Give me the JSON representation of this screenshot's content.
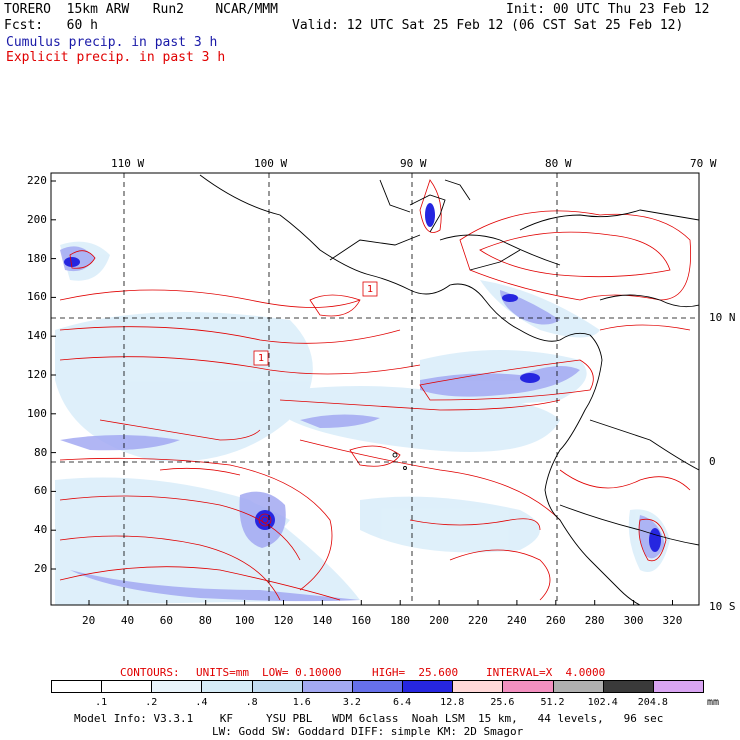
{
  "header": {
    "model": "TORERO  15km ARW   Run2    NCAR/MMM",
    "init": "Init: 00 UTC Thu 23 Feb 12",
    "fcst": "Fcst:   60 h",
    "valid": "Valid: 12 UTC Sat 25 Feb 12 (06 CST Sat 25 Feb 12)",
    "field_cumulus": "Cumulus precip. in past 3 h",
    "field_explicit": "Explicit precip. in past 3 h"
  },
  "map": {
    "top_lon_labels": [
      "110 W",
      "100 W",
      "90 W",
      "80 W",
      "70 W"
    ],
    "right_lat_labels": [
      "10 N",
      "0",
      "10 S"
    ],
    "y_ticks": [
      "220",
      "200",
      "180",
      "160",
      "140",
      "120",
      "100",
      "80",
      "60",
      "40",
      "20"
    ],
    "x_ticks": [
      "20",
      "40",
      "60",
      "80",
      "100",
      "120",
      "140",
      "160",
      "180",
      "200",
      "220",
      "240",
      "260",
      "280",
      "300",
      "320"
    ],
    "high_low_labels": [
      "1",
      "1"
    ],
    "colors": {
      "cumulus": "#4a55e8",
      "explicit": "#e00000",
      "coast": "#000000"
    }
  },
  "contour_info": {
    "contours_label": "CONTOURS:",
    "units": "UNITS=mm",
    "low": "LOW= 0.10000",
    "high": "HIGH=  25.600",
    "interval": "INTERVAL=X  4.0000"
  },
  "colorbar": {
    "labels": [
      ".1",
      ".2",
      ".4",
      ".8",
      "1.6",
      "3.2",
      "6.4",
      "12.8",
      "25.6",
      "51.2",
      "102.4",
      "204.8"
    ],
    "units": "mm",
    "colors": [
      "#ffffff",
      "#ffffff",
      "#e9f4fb",
      "#d6ecf7",
      "#c3ddf2",
      "#a3a9f2",
      "#6670ea",
      "#2626e0",
      "#ffd8d8",
      "#f390c0",
      "#b0b0b0",
      "#3a3a3a",
      "#d9a5f2"
    ]
  },
  "footer": {
    "line1": "Model Info: V3.3.1    KF     YSU PBL   WDM 6class  Noah LSM  15 km,   44 levels,   96 sec",
    "line2": "LW: Godd SW: Goddard DIFF: simple KM: 2D Smagor"
  }
}
